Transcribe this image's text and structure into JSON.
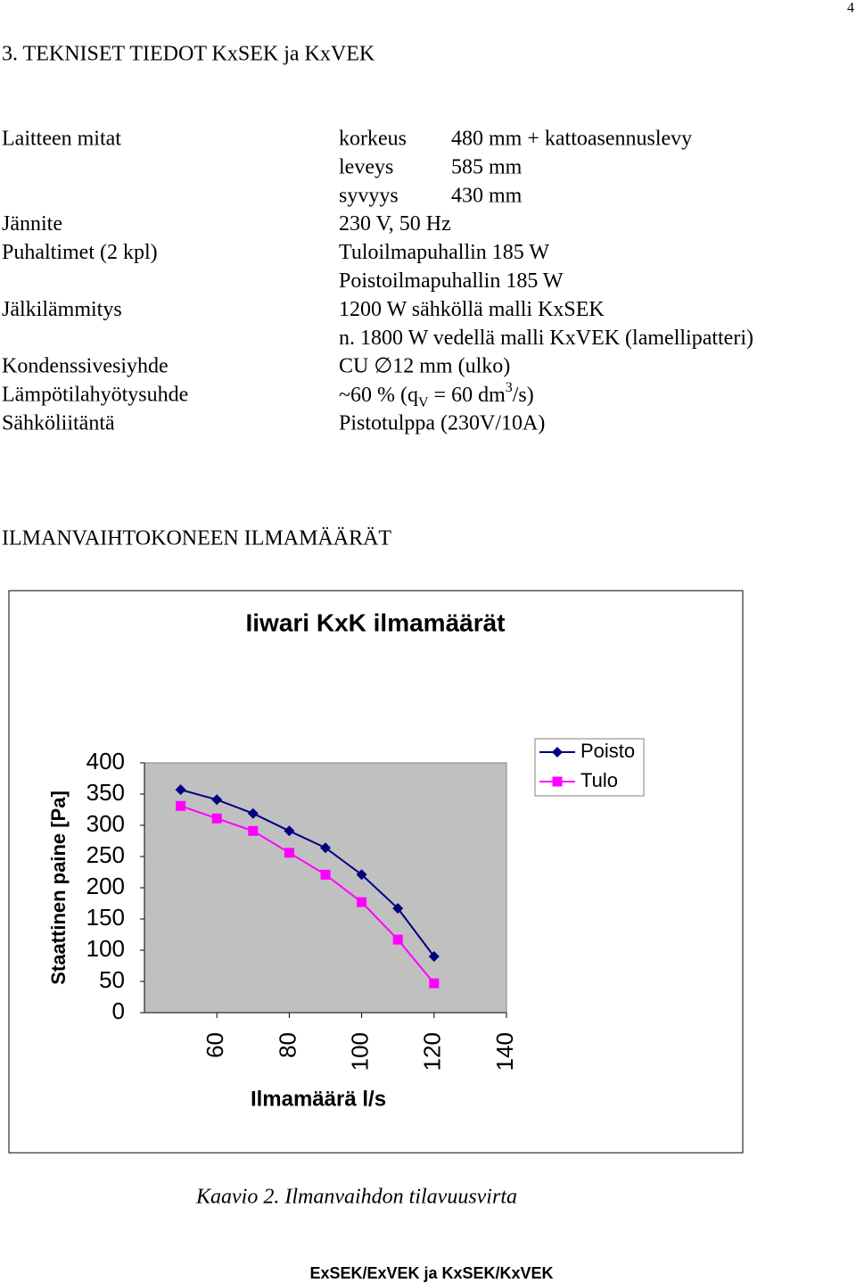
{
  "page_number": "4",
  "section_title": "3. TEKNISET TIEDOT KxSEK ja KxVEK",
  "specs": [
    {
      "label": "Laitteen mitat",
      "key": "korkeus",
      "value": "480 mm + kattoasennuslevy"
    },
    {
      "key": "leveys",
      "value": "585 mm"
    },
    {
      "key": "syvyys",
      "value": "430 mm"
    },
    {
      "label": "Jännite",
      "value": "230 V, 50 Hz"
    },
    {
      "label": "Puhaltimet (2 kpl)",
      "value": "Tuloilmapuhallin 185 W"
    },
    {
      "value": "Poistoilmapuhallin 185 W"
    },
    {
      "label": "Jälkilämmitys",
      "value": "1200 W sähköllä malli KxSEK"
    },
    {
      "value": "n. 1800 W vedellä malli KxVEK (lamellipatteri)"
    },
    {
      "label": "Kondenssivesiyhde",
      "value": "CU ∅12 mm (ulko)"
    },
    {
      "label": "Lämpötilahyötysuhde",
      "value_parts": [
        {
          "text": "~60 % (q"
        },
        {
          "text": "V",
          "script": "sub"
        },
        {
          "text": " = 60 dm"
        },
        {
          "text": "3",
          "script": "super"
        },
        {
          "text": "/s)"
        }
      ]
    },
    {
      "label": "Sähköliitäntä",
      "value": "Pistotulppa (230V/10A)"
    }
  ],
  "chart_heading": "ILMANVAIHTOKONEEN ILMAMÄÄRÄT",
  "chart_data": {
    "type": "line",
    "title": "Iiwari KxK ilmamäärät",
    "x_label": "Ilmamäärä l/s",
    "y_label": "Staattinen paine [Pa]",
    "x": [
      50,
      60,
      70,
      80,
      90,
      100,
      110,
      120
    ],
    "series": [
      {
        "name": "Poisto",
        "color": "#000080",
        "marker": "diamond",
        "values": [
          357,
          341,
          319,
          291,
          264,
          221,
          167,
          90
        ]
      },
      {
        "name": "Tulo",
        "color": "#ff00ff",
        "marker": "square",
        "values": [
          331,
          311,
          291,
          256,
          221,
          177,
          117,
          47
        ]
      }
    ],
    "xlim": [
      40,
      140
    ],
    "xticks": [
      60,
      80,
      100,
      120,
      140
    ],
    "ylim": [
      0,
      400
    ],
    "yticks": [
      0,
      50,
      100,
      150,
      200,
      250,
      300,
      350,
      400
    ],
    "legend": "right"
  },
  "caption": "Kaavio 2. Ilmanvaihdon tilavuusvirta",
  "footer": "ExSEK/ExVEK ja KxSEK/KxVEK"
}
